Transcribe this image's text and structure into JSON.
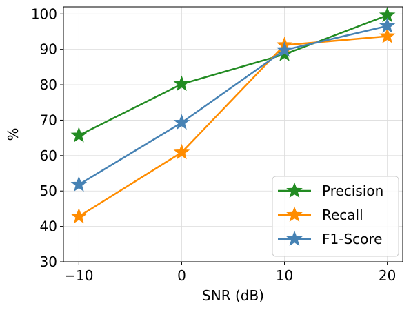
{
  "chart_data": {
    "type": "line",
    "title": "",
    "xlabel": "SNR (dB)",
    "ylabel": "%",
    "x": [
      -10,
      0,
      10,
      20
    ],
    "xticks": [
      -10,
      0,
      10,
      20
    ],
    "xtick_labels": [
      "−10",
      "0",
      "10",
      "20"
    ],
    "yticks": [
      30,
      40,
      50,
      60,
      70,
      80,
      90,
      100
    ],
    "xlim": [
      -11.5,
      21.5
    ],
    "ylim": [
      30,
      102
    ],
    "grid": true,
    "legend_position": "lower-right",
    "marker": "star",
    "series": [
      {
        "name": "Precision",
        "color": "#228B22",
        "values": [
          65.7,
          80.2,
          88.6,
          99.6
        ]
      },
      {
        "name": "Recall",
        "color": "#FF8C00",
        "values": [
          42.8,
          60.9,
          91.2,
          93.7
        ]
      },
      {
        "name": "F1-Score",
        "color": "#4682B4",
        "values": [
          51.8,
          69.3,
          89.8,
          96.6
        ]
      }
    ]
  }
}
